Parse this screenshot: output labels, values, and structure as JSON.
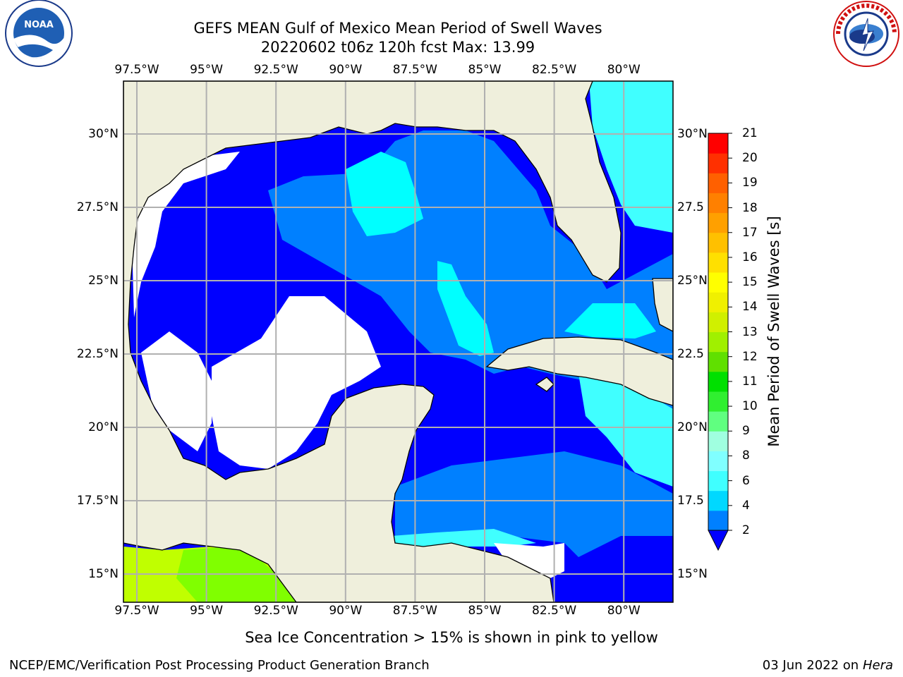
{
  "header": {
    "title_line1": "GEFS MEAN Gulf of Mexico Mean Period of Swell Waves",
    "title_line2": "20220602 t06z 120h fcst   Max: 13.99"
  },
  "logos": {
    "left": {
      "name": "noaa-logo",
      "text": "NOAA"
    },
    "right": {
      "name": "nws-logo"
    }
  },
  "map": {
    "lon_ticks": [
      "97.5°W",
      "95°W",
      "92.5°W",
      "90°W",
      "87.5°W",
      "85°W",
      "82.5°W",
      "80°W"
    ],
    "lat_ticks_left": [
      "30°N",
      "27.5°N",
      "25°N",
      "22.5°N",
      "20°N",
      "17.5°N",
      "15°N"
    ],
    "lat_ticks_right": [
      "30°N",
      "27.5",
      "25°N",
      "22.5",
      "20°N",
      "17.5",
      "15°N"
    ],
    "lon_range": [
      -98,
      -79
    ],
    "lat_range": [
      14,
      31.7
    ],
    "colors": {
      "land": "#efefdc",
      "ocean_white": "#ffffff",
      "band_0_2": "#0000ff",
      "band_2_4": "#0080ff",
      "band_4_6": "#00ffff",
      "band_10_12": "#80ff00",
      "band_12_13": "#c0ff00",
      "grid": "#b0b0b0"
    }
  },
  "colorbar": {
    "label": "Mean Period of Swell Waves [s]",
    "ticks": [
      "2",
      "4",
      "6",
      "8",
      "9",
      "10",
      "11",
      "12",
      "13",
      "14",
      "15",
      "16",
      "17",
      "18",
      "19",
      "20",
      "21"
    ],
    "colors": [
      "#0080ff",
      "#00d8ff",
      "#40ffff",
      "#80ffff",
      "#a0ffe0",
      "#60ff80",
      "#30ef30",
      "#00e000",
      "#60e000",
      "#a0f000",
      "#d0f000",
      "#f0f000",
      "#ffff00",
      "#ffe000",
      "#ffc000",
      "#ffa000",
      "#ff8000",
      "#ff6000",
      "#ff3000",
      "#ff0000"
    ],
    "under_color": "#0000ff"
  },
  "note": "Sea Ice Concentration > 15% is shown in pink to yellow",
  "footer": {
    "left": "NCEP/EMC/Verification Post Processing Product Generation Branch",
    "date": "03 Jun 2022 on",
    "machine": "Hera"
  }
}
